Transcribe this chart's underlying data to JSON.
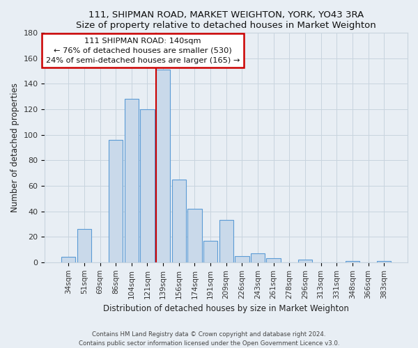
{
  "title": "111, SHIPMAN ROAD, MARKET WEIGHTON, YORK, YO43 3RA",
  "subtitle": "Size of property relative to detached houses in Market Weighton",
  "xlabel": "Distribution of detached houses by size in Market Weighton",
  "ylabel": "Number of detached properties",
  "bar_labels": [
    "34sqm",
    "51sqm",
    "69sqm",
    "86sqm",
    "104sqm",
    "121sqm",
    "139sqm",
    "156sqm",
    "174sqm",
    "191sqm",
    "209sqm",
    "226sqm",
    "243sqm",
    "261sqm",
    "278sqm",
    "296sqm",
    "313sqm",
    "331sqm",
    "348sqm",
    "366sqm",
    "383sqm"
  ],
  "bar_heights": [
    4,
    26,
    0,
    96,
    128,
    120,
    151,
    65,
    42,
    17,
    33,
    5,
    7,
    3,
    0,
    2,
    0,
    0,
    1,
    0,
    1
  ],
  "bar_color": "#c9d9ea",
  "bar_edge_color": "#5b9bd5",
  "vline_color": "#cc0000",
  "vline_x_index": 6,
  "annotation_title": "111 SHIPMAN ROAD: 140sqm",
  "annotation_line1": "← 76% of detached houses are smaller (530)",
  "annotation_line2": "24% of semi-detached houses are larger (165) →",
  "annotation_box_color": "#ffffff",
  "annotation_box_edge_color": "#cc0000",
  "ylim": [
    0,
    180
  ],
  "yticks": [
    0,
    20,
    40,
    60,
    80,
    100,
    120,
    140,
    160,
    180
  ],
  "footer1": "Contains HM Land Registry data © Crown copyright and database right 2024.",
  "footer2": "Contains public sector information licensed under the Open Government Licence v3.0.",
  "bg_color": "#e8eef4",
  "plot_bg_color": "#e8eef4",
  "grid_color": "#c8d4de"
}
